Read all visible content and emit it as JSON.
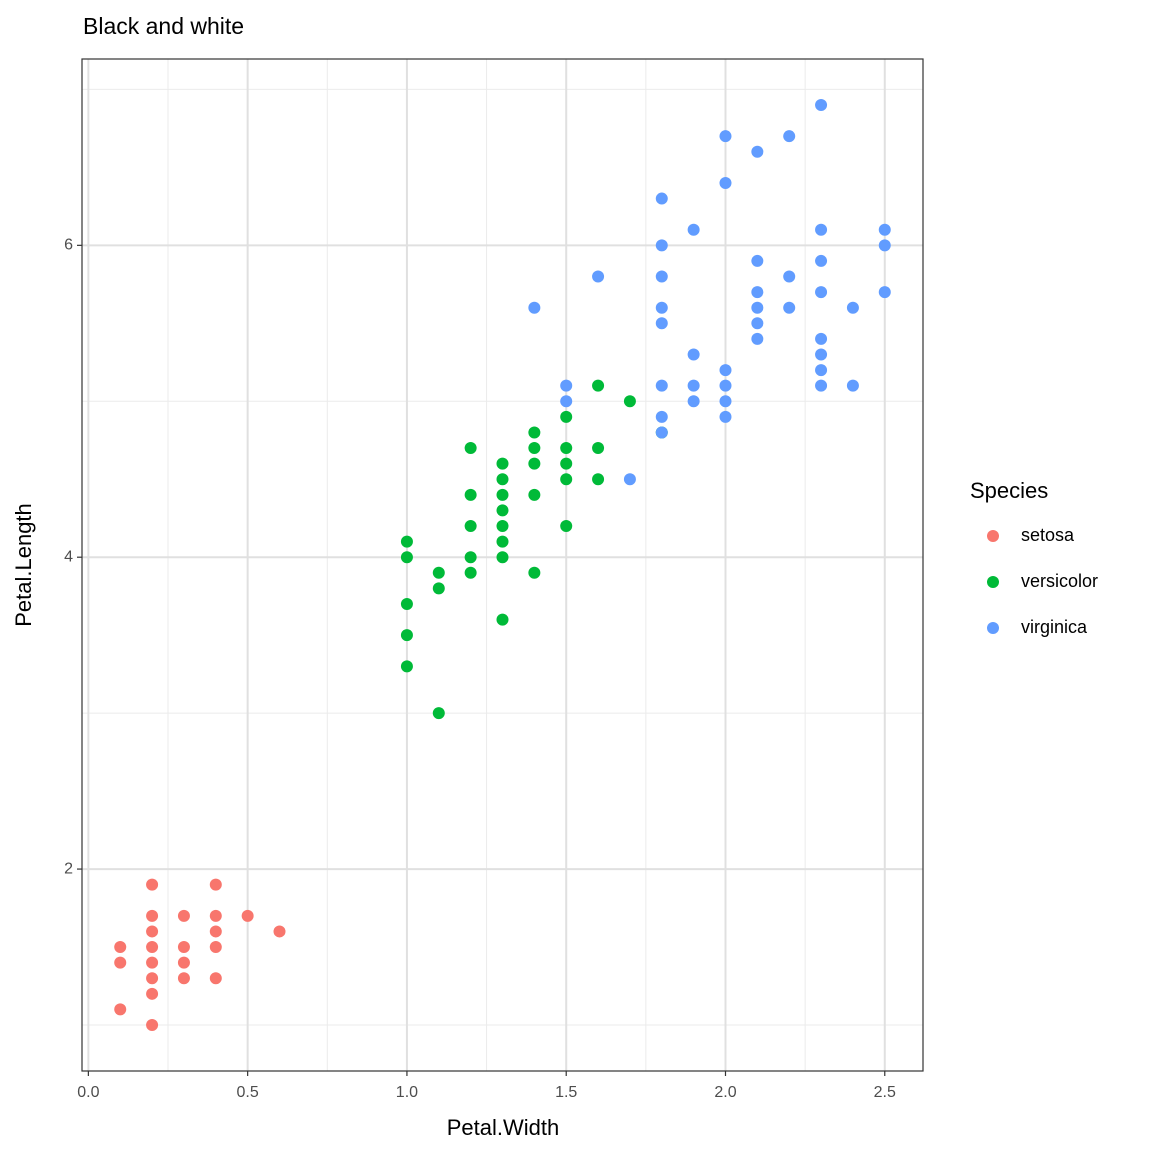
{
  "chart_data": {
    "type": "scatter",
    "title": "Black and white",
    "xlabel": "Petal.Width",
    "ylabel": "Petal.Length",
    "legend_title": "Species",
    "legend_position": "right",
    "grid": true,
    "xlim": [
      -0.02,
      2.62
    ],
    "ylim": [
      0.705,
      7.195
    ],
    "xticks": [
      {
        "value": 0,
        "label": "0.0"
      },
      0.5,
      {
        "value": 1,
        "label": "1.0"
      },
      1.5,
      {
        "value": 2,
        "label": "2.0"
      },
      2.5
    ],
    "yticks": [
      2,
      4,
      6
    ],
    "series": [
      {
        "name": "setosa",
        "color": "#F8766D",
        "x": [
          0.1,
          0.1,
          0.1,
          0.2,
          0.2,
          0.2,
          0.2,
          0.2,
          0.2,
          0.2,
          0.2,
          0.3,
          0.3,
          0.3,
          0.3,
          0.4,
          0.4,
          0.4,
          0.4,
          0.4,
          0.5,
          0.6
        ],
        "values": [
          1.5,
          1.4,
          1.1,
          1.9,
          1.7,
          1.6,
          1.5,
          1.4,
          1.3,
          1.2,
          1.0,
          1.7,
          1.5,
          1.4,
          1.3,
          1.9,
          1.7,
          1.6,
          1.5,
          1.3,
          1.7,
          1.6
        ]
      },
      {
        "name": "versicolor",
        "color": "#00BA38",
        "x": [
          1.0,
          1.0,
          1.0,
          1.0,
          1.0,
          1.1,
          1.1,
          1.1,
          1.2,
          1.2,
          1.2,
          1.2,
          1.2,
          1.3,
          1.3,
          1.3,
          1.3,
          1.3,
          1.3,
          1.3,
          1.3,
          1.4,
          1.4,
          1.4,
          1.4,
          1.4,
          1.5,
          1.5,
          1.5,
          1.5,
          1.5,
          1.6,
          1.6,
          1.6,
          1.7,
          1.8
        ],
        "values": [
          4.1,
          4.0,
          3.7,
          3.5,
          3.3,
          3.9,
          3.8,
          3.0,
          4.7,
          4.4,
          4.2,
          4.0,
          3.9,
          4.6,
          4.5,
          4.4,
          4.3,
          4.2,
          4.1,
          4.0,
          3.6,
          4.8,
          4.7,
          4.6,
          4.4,
          3.9,
          4.9,
          4.7,
          4.6,
          4.5,
          4.2,
          5.1,
          4.7,
          4.5,
          5.0,
          4.8
        ]
      },
      {
        "name": "virginica",
        "color": "#619CFF",
        "x": [
          1.4,
          1.5,
          1.5,
          1.6,
          1.7,
          1.8,
          1.8,
          1.8,
          1.8,
          1.8,
          1.8,
          1.8,
          1.8,
          1.9,
          1.9,
          1.9,
          1.9,
          2.0,
          2.0,
          2.0,
          2.0,
          2.0,
          2.0,
          2.1,
          2.1,
          2.1,
          2.1,
          2.1,
          2.1,
          2.2,
          2.2,
          2.2,
          2.3,
          2.3,
          2.3,
          2.3,
          2.3,
          2.3,
          2.3,
          2.3,
          2.4,
          2.4,
          2.5,
          2.5,
          2.5
        ],
        "values": [
          5.6,
          5.1,
          5.0,
          5.8,
          4.5,
          6.3,
          6.0,
          5.8,
          5.6,
          5.5,
          5.1,
          4.9,
          4.8,
          6.1,
          5.3,
          5.1,
          5.0,
          6.7,
          6.4,
          5.2,
          5.1,
          5.0,
          4.9,
          6.6,
          5.9,
          5.7,
          5.6,
          5.5,
          5.4,
          6.7,
          5.8,
          5.6,
          6.9,
          6.1,
          5.9,
          5.7,
          5.4,
          5.3,
          5.2,
          5.1,
          5.6,
          5.1,
          6.1,
          6.0,
          5.7
        ]
      }
    ]
  }
}
